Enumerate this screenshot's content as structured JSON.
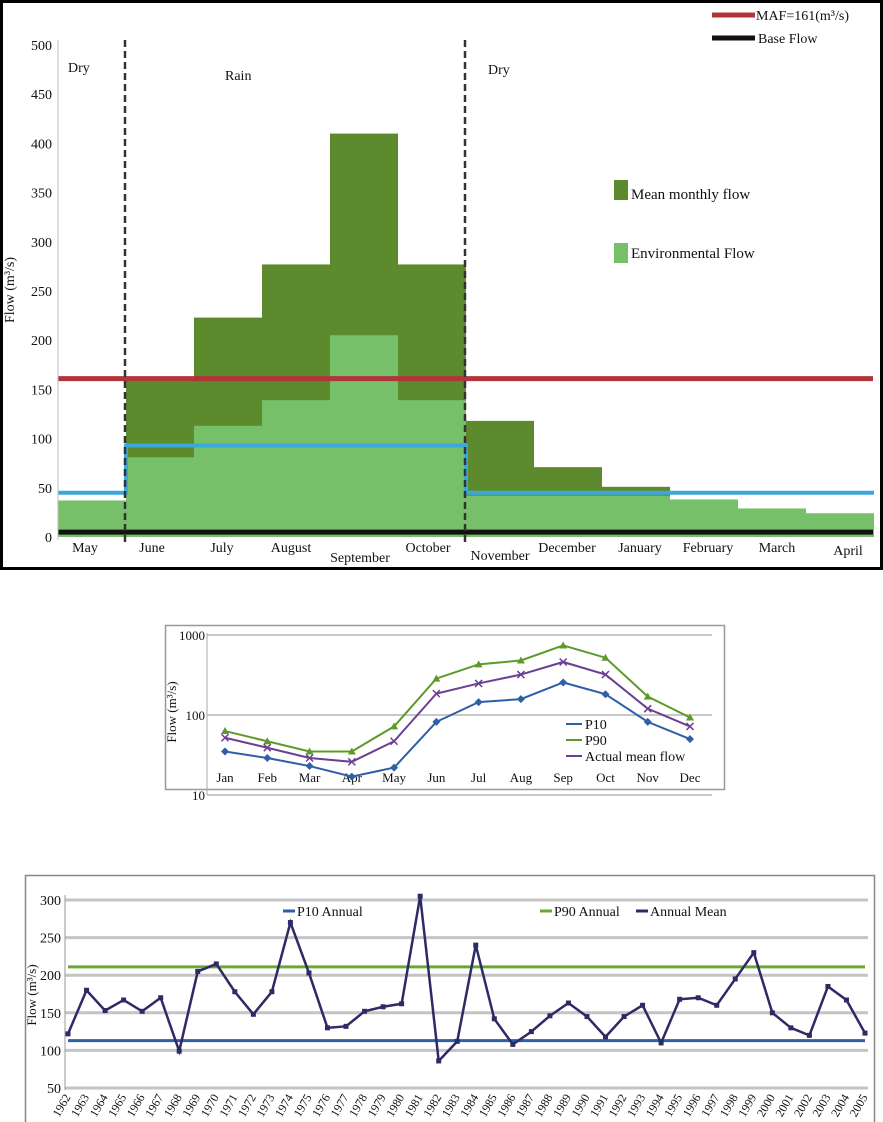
{
  "chart_data": [
    {
      "type": "bar",
      "ylabel": "Flow (m³/s)",
      "ylim": [
        0,
        500
      ],
      "yticks": [
        0,
        50,
        100,
        150,
        200,
        250,
        300,
        350,
        400,
        450,
        500
      ],
      "categories": [
        "May",
        "June",
        "July",
        "August",
        "September",
        "October",
        "November",
        "December",
        "January",
        "February",
        "March",
        "April"
      ],
      "series": [
        {
          "name": "Mean monthly flow",
          "color": "#5e8a2e",
          "values": [
            37,
            160,
            223,
            277,
            410,
            277,
            118,
            71,
            51,
            38,
            29,
            24
          ]
        },
        {
          "name": "Environmental Flow",
          "color": "#77c06a",
          "values": [
            37,
            81,
            113,
            139,
            205,
            139,
            42,
            42,
            42,
            38,
            29,
            24
          ]
        }
      ],
      "lines": [
        {
          "name": "MAF=161(m³/s)",
          "color": "#b0343a",
          "value": 161
        },
        {
          "name": "Base Flow",
          "color": "#111111",
          "value": 5
        },
        {
          "color": "#3aa8d8",
          "values": [
            45,
            93,
            93,
            93,
            93,
            93,
            45,
            45,
            45,
            45,
            45,
            45
          ]
        }
      ],
      "season_labels": [
        "Dry",
        "Rain",
        "Dry"
      ],
      "legend": "right"
    },
    {
      "type": "line",
      "ylabel": "Flow (m³/s)",
      "yscale": "log",
      "ylim": [
        10,
        1000
      ],
      "yticks": [
        "10",
        "100",
        "1000"
      ],
      "categories": [
        "Jan",
        "Feb",
        "Mar",
        "Apr",
        "May",
        "Jun",
        "Jul",
        "Aug",
        "Sep",
        "Oct",
        "Nov",
        "Dec"
      ],
      "series": [
        {
          "name": "P10",
          "color": "#2e5fa8",
          "marker": "diamond",
          "values": [
            35,
            29,
            23,
            17,
            22,
            82,
            145,
            158,
            255,
            182,
            82,
            50
          ]
        },
        {
          "name": "P90",
          "color": "#5e9a2a",
          "marker": "triangle",
          "values": [
            63,
            47,
            35,
            35,
            72,
            285,
            430,
            480,
            740,
            520,
            170,
            93
          ]
        },
        {
          "name": "Actual mean flow",
          "color": "#6b3f93",
          "marker": "x",
          "values": [
            52,
            39,
            29,
            26,
            47,
            185,
            248,
            320,
            460,
            320,
            120,
            72
          ]
        }
      ],
      "grid": true,
      "legend": "bottom-right"
    },
    {
      "type": "line",
      "ylabel": "Flow (m³/s)",
      "ylim": [
        50,
        300
      ],
      "yticks": [
        50,
        100,
        150,
        200,
        250,
        300
      ],
      "x": [
        "1962",
        "1963",
        "1964",
        "1965",
        "1966",
        "1967",
        "1968",
        "1969",
        "1970",
        "1971",
        "1972",
        "1973",
        "1974",
        "1975",
        "1976",
        "1977",
        "1978",
        "1979",
        "1980",
        "1981",
        "1982",
        "1983",
        "1984",
        "1985",
        "1986",
        "1987",
        "1988",
        "1989",
        "1990",
        "1991",
        "1992",
        "1993",
        "1994",
        "1995",
        "1996",
        "1997",
        "1998",
        "1999",
        "2000",
        "2001",
        "2002",
        "2003",
        "2004",
        "2005"
      ],
      "series": [
        {
          "name": "P10 Annual",
          "color": "#2e5fa8",
          "value": 113
        },
        {
          "name": "P90 Annual",
          "color": "#6aa832",
          "value": 211
        },
        {
          "name": "Annual Mean",
          "color": "#2d2a66",
          "values": [
            122,
            180,
            153,
            167,
            152,
            170,
            99,
            205,
            215,
            178,
            148,
            178,
            270,
            203,
            130,
            132,
            152,
            158,
            162,
            305,
            86,
            112,
            240,
            142,
            108,
            125,
            146,
            163,
            145,
            118,
            145,
            160,
            110,
            168,
            170,
            160,
            195,
            230,
            150,
            130,
            120,
            185,
            167,
            123
          ]
        }
      ],
      "grid": true,
      "legend": "top"
    }
  ]
}
